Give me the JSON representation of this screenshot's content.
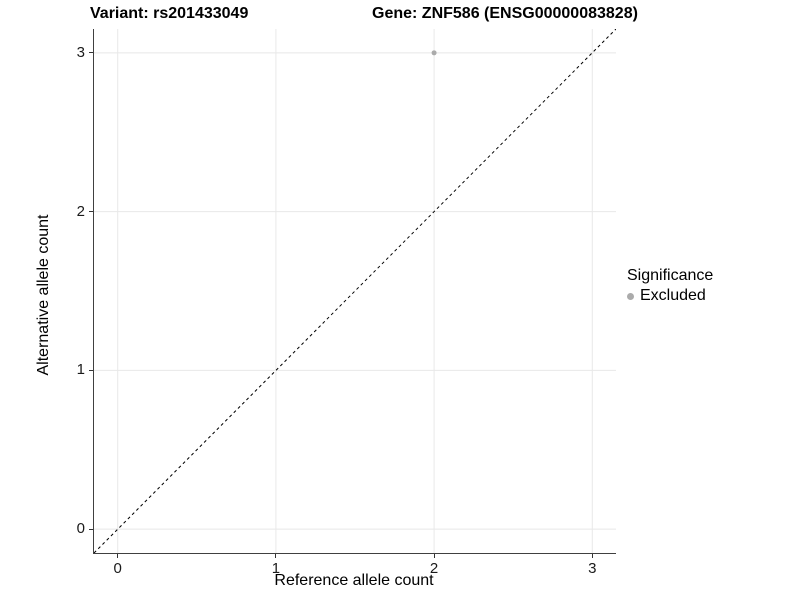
{
  "chart_data": {
    "type": "scatter",
    "title_left": "Variant: rs201433049",
    "title_right": "Gene: ZNF586 (ENSG00000083828)",
    "xlabel": "Reference allele count",
    "ylabel": "Alternative allele count",
    "xlim": [
      -0.15,
      3.15
    ],
    "ylim": [
      -0.15,
      3.15
    ],
    "xticks": [
      0,
      1,
      2,
      3
    ],
    "yticks": [
      0,
      1,
      2,
      3
    ],
    "grid": true,
    "legend_position": "right",
    "points": [
      {
        "x": 2,
        "y": 3,
        "series": "Excluded"
      }
    ],
    "reference_line": {
      "type": "identity",
      "style": "dashed",
      "from": [
        -0.15,
        -0.15
      ],
      "to": [
        3.15,
        3.15
      ]
    },
    "legend": {
      "title": "Significance",
      "entries": [
        {
          "label": "Excluded",
          "color": "#ababab"
        }
      ]
    },
    "colors": {
      "grid": "#e8e8e8",
      "axis": "#404040",
      "tick": "#333333",
      "point": "#ababab",
      "reference_line": "#000000",
      "background": "#ffffff"
    },
    "point_radius": 2.5
  }
}
